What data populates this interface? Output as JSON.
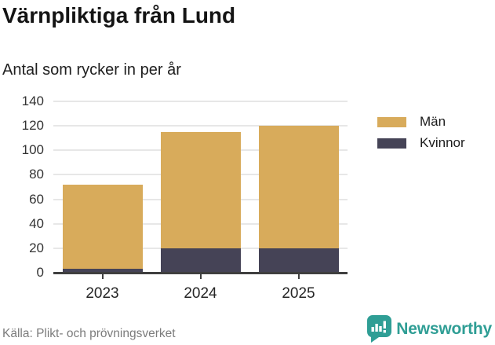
{
  "header": {
    "title": "Värnpliktiga från Lund",
    "subtitle": "Antal som rycker in per år"
  },
  "chart_data": {
    "type": "bar",
    "stacked": true,
    "title": "Värnpliktiga från Lund",
    "subtitle": "Antal som rycker in per år",
    "categories": [
      "2023",
      "2024",
      "2025"
    ],
    "series": [
      {
        "name": "Män",
        "color": "#d8ab5b",
        "values": [
          69,
          95,
          100
        ]
      },
      {
        "name": "Kvinnor",
        "color": "#454356",
        "values": [
          3,
          20,
          20
        ]
      }
    ],
    "totals": [
      72,
      115,
      120
    ],
    "xlabel": "",
    "ylabel": "",
    "ylim": [
      0,
      140
    ],
    "yticks": [
      0,
      20,
      40,
      60,
      80,
      100,
      120,
      140
    ],
    "grid": true,
    "legend_position": "right",
    "stack_note": "Kvinnor segment at bottom, Män on top"
  },
  "footer": {
    "source": "Källa: Plikt- och prövningsverket",
    "brand": "Newsworthy",
    "brand_color": "#2f9e95"
  }
}
